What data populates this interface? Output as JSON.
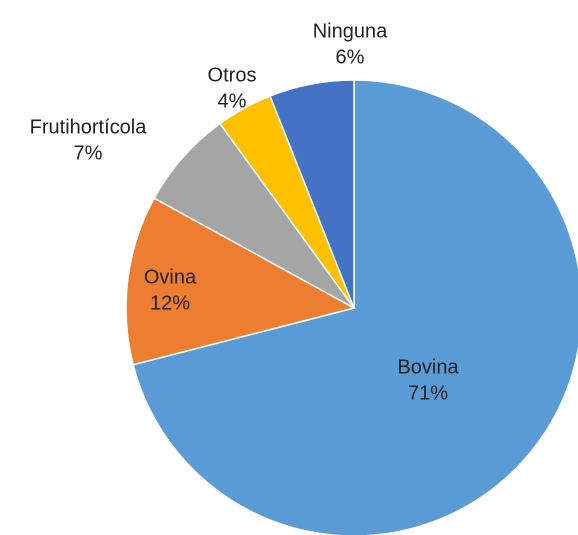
{
  "chart_data": {
    "type": "pie",
    "categories": [
      "Bovina",
      "Ovina",
      "Frutihortícola",
      "Otros",
      "Ninguna"
    ],
    "values": [
      71,
      12,
      7,
      4,
      6
    ],
    "value_labels": [
      "71%",
      "12%",
      "7%",
      "4%",
      "6%"
    ],
    "colors": [
      "#5b9bd5",
      "#ed7d31",
      "#a5a5a5",
      "#ffc000",
      "#4472c4"
    ]
  }
}
